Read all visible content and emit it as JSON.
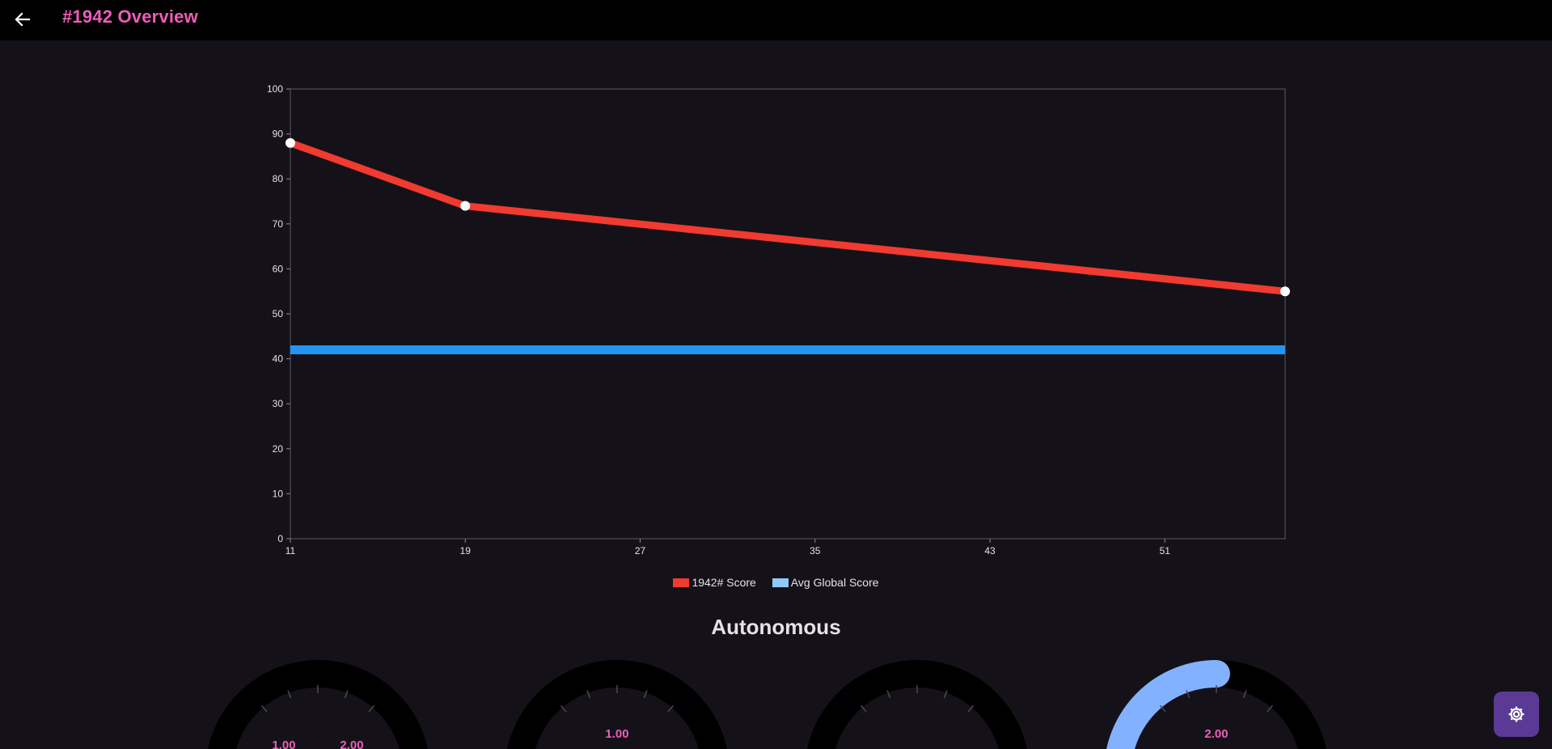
{
  "header": {
    "title": "#1942 Overview",
    "back_icon": "arrow-left-icon"
  },
  "colors": {
    "accent": "#ee5db8",
    "series_team": "#f13a30",
    "series_avg": "#2196f3",
    "legend_avg": "#90caf9",
    "gauge_fill": "#82b1ff",
    "fab": "#5b3a96"
  },
  "chart_data": {
    "type": "line",
    "xlim": [
      11,
      56.5
    ],
    "ylim": [
      0,
      100
    ],
    "x_ticks": [
      "11",
      "19",
      "27",
      "35",
      "43",
      "51"
    ],
    "y_ticks": [
      "0",
      "10",
      "20",
      "30",
      "40",
      "50",
      "60",
      "70",
      "80",
      "90",
      "100"
    ],
    "series": [
      {
        "name": "1942# Score",
        "x": [
          11,
          19,
          56.5
        ],
        "y": [
          88,
          74,
          55
        ]
      },
      {
        "name": "Avg Global Score",
        "x": [
          11,
          56.5
        ],
        "y": [
          42,
          42
        ]
      }
    ],
    "legend_position": "bottom",
    "grid": false
  },
  "section": {
    "title": "Autonomous"
  },
  "gauges": [
    {
      "labels": [
        "1.00",
        "2.00"
      ],
      "level": 0
    },
    {
      "labels": [
        "1.00"
      ],
      "level": 0
    },
    {
      "labels": [],
      "level": 0
    },
    {
      "labels": [
        "2.00"
      ],
      "level": 0.5
    }
  ],
  "fab": {
    "icon": "gear-icon"
  }
}
